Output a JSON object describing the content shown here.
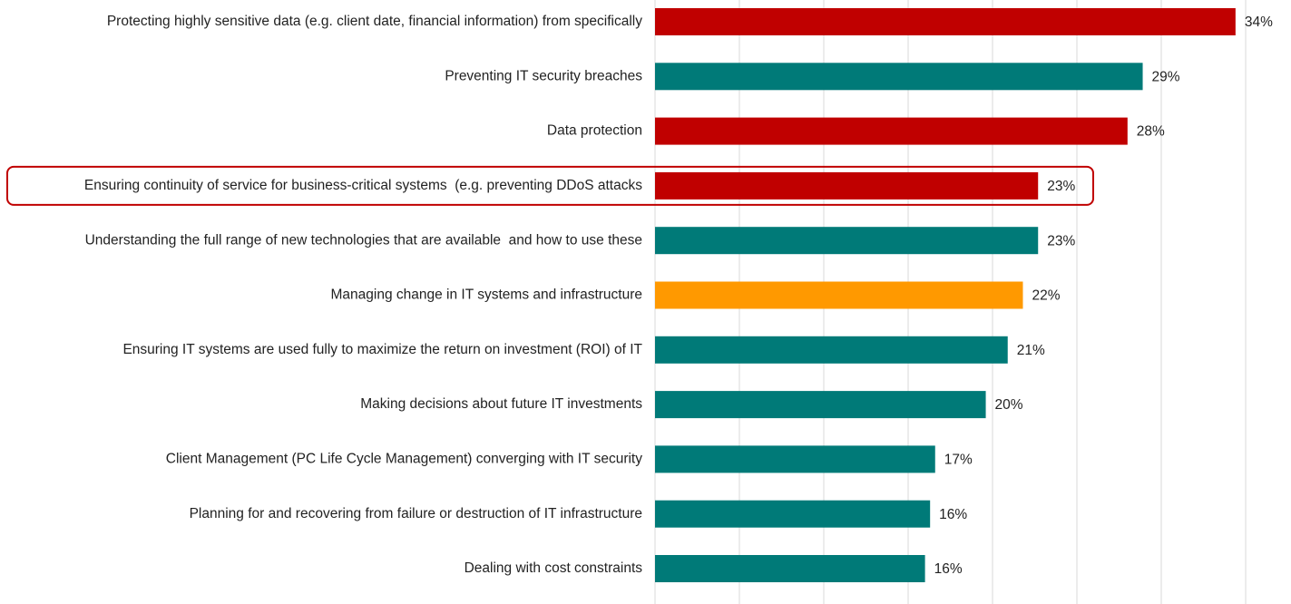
{
  "chart_data": {
    "type": "barh",
    "categories": [
      "Protecting highly sensitive data (e.g. client date, financial information) from specifically",
      "Preventing IT security breaches",
      "Data protection",
      "Ensuring continuity of service for business-critical systems  (e.g. preventing DDoS attacks",
      "Understanding the full range of new technologies that are available  and how to use these",
      "Managing change in IT systems and infrastructure",
      "Ensuring IT systems are used fully to maximize the return on investment (ROI) of IT",
      "Making decisions about future IT investments",
      "Client Management (PC Life Cycle Management) converging with IT security",
      "Planning for and recovering from failure or destruction of IT infrastructure",
      "Dealing with cost constraints"
    ],
    "values": [
      34.4,
      28.9,
      28.0,
      22.7,
      22.7,
      21.8,
      20.9,
      19.6,
      16.6,
      16.3,
      16.0
    ],
    "value_labels": [
      "34%",
      "29%",
      "28%",
      "23%",
      "23%",
      "22%",
      "21%",
      "20%",
      "17%",
      "16%",
      "16%"
    ],
    "colors": [
      "#c00000",
      "#007a78",
      "#c00000",
      "#c00000",
      "#007a78",
      "#ff9900",
      "#007a78",
      "#007a78",
      "#007a78",
      "#007a78",
      "#007a78"
    ],
    "xlim": [
      0,
      35
    ],
    "xticks": [
      0,
      5,
      10,
      15,
      20,
      25,
      30,
      35
    ],
    "grid": true,
    "highlight": 3
  }
}
